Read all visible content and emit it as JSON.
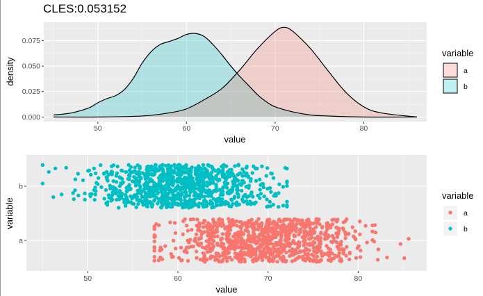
{
  "chart_data": [
    {
      "type": "area",
      "title": "CLES:0.053152",
      "xlabel": "value",
      "ylabel": "density",
      "xlim": [
        43.9,
        87.1
      ],
      "ylim": [
        -0.0045,
        0.093
      ],
      "x_ticks": [
        50,
        60,
        70,
        80
      ],
      "y_ticks": [
        0.0,
        0.025,
        0.05,
        0.075
      ],
      "y_tick_labels": [
        "0.000",
        "0.025",
        "0.050",
        "0.075"
      ],
      "grid": true,
      "legend": {
        "title": "variable",
        "placement": "right",
        "entries": [
          "a",
          "b"
        ]
      },
      "series": [
        {
          "name": "a",
          "color": "#F8766D",
          "x": [
            45,
            50,
            55,
            58,
            60,
            62,
            64,
            66,
            68,
            70,
            71,
            72,
            74,
            76,
            78,
            80,
            82,
            86
          ],
          "y": [
            0.0,
            0.0,
            0.001,
            0.004,
            0.008,
            0.017,
            0.028,
            0.046,
            0.067,
            0.084,
            0.088,
            0.084,
            0.067,
            0.045,
            0.024,
            0.01,
            0.004,
            0.0
          ]
        },
        {
          "name": "b",
          "color": "#00BFC4",
          "x": [
            45,
            47,
            49,
            50,
            51,
            52,
            53,
            54,
            55,
            56,
            57,
            58,
            59,
            60,
            61,
            62,
            63,
            64,
            65,
            66,
            67,
            68,
            69,
            70,
            72,
            74,
            76,
            80,
            86
          ],
          "y": [
            0.002,
            0.004,
            0.009,
            0.014,
            0.018,
            0.021,
            0.027,
            0.038,
            0.053,
            0.064,
            0.071,
            0.074,
            0.077,
            0.081,
            0.082,
            0.079,
            0.071,
            0.061,
            0.05,
            0.04,
            0.031,
            0.022,
            0.015,
            0.01,
            0.005,
            0.002,
            0.001,
            0.0,
            0.0
          ]
        }
      ]
    },
    {
      "type": "scatter",
      "xlabel": "value",
      "ylabel": "variable",
      "xlim": [
        43.2,
        87.6
      ],
      "x_ticks": [
        50,
        60,
        70,
        80
      ],
      "categories": [
        "a",
        "b"
      ],
      "grid": true,
      "legend": {
        "title": "variable",
        "placement": "right",
        "entries": [
          "a",
          "b"
        ]
      },
      "series": [
        {
          "name": "a",
          "color": "#F8766D",
          "n": 1000,
          "mean": 70,
          "sd": 5,
          "range": [
            57.4,
            85.6
          ]
        },
        {
          "name": "b",
          "color": "#00BFC4",
          "n": 1000,
          "mean": 60,
          "sd": 5,
          "range": [
            45.0,
            72.1
          ]
        }
      ]
    }
  ]
}
